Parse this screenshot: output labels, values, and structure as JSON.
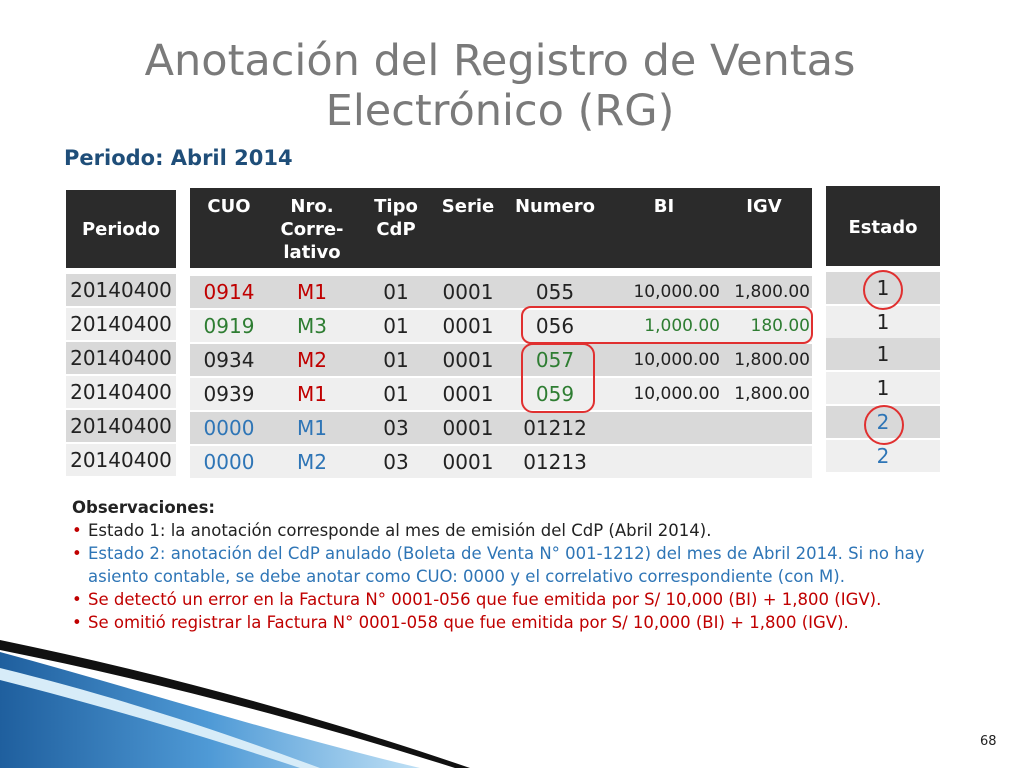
{
  "title_line1": "Anotación del Registro de Ventas",
  "title_line2": "Electrónico (RG)",
  "period_label": "Periodo: Abril 2014",
  "headers": {
    "periodo": "Periodo",
    "cuo": "CUO",
    "nro_1": "Nro.",
    "nro_2": "Corre-",
    "nro_3": "lativo",
    "tipo_1": "Tipo",
    "tipo_2": "CdP",
    "serie": "Serie",
    "numero": "Numero",
    "bi": "BI",
    "igv": "IGV",
    "estado": "Estado"
  },
  "rows": [
    {
      "periodo": "20140400",
      "cuo": "0914",
      "nro": "M1",
      "tipo": "01",
      "serie": "0001",
      "numero": "055",
      "bi": "10,000.00",
      "igv": "1,800.00",
      "estado": "1"
    },
    {
      "periodo": "20140400",
      "cuo": "0919",
      "nro": "M3",
      "tipo": "01",
      "serie": "0001",
      "numero": "056",
      "bi": "1,000.00",
      "igv": "180.00",
      "estado": "1"
    },
    {
      "periodo": "20140400",
      "cuo": "0934",
      "nro": "M2",
      "tipo": "01",
      "serie": "0001",
      "numero": "057",
      "bi": "10,000.00",
      "igv": "1,800.00",
      "estado": "1"
    },
    {
      "periodo": "20140400",
      "cuo": "0939",
      "nro": "M1",
      "tipo": "01",
      "serie": "0001",
      "numero": "059",
      "bi": "10,000.00",
      "igv": "1,800.00",
      "estado": "1"
    },
    {
      "periodo": "20140400",
      "cuo": "0000",
      "nro": "M1",
      "tipo": "03",
      "serie": "0001",
      "numero": "01212",
      "bi": "",
      "igv": "",
      "estado": "2"
    },
    {
      "periodo": "20140400",
      "cuo": "0000",
      "nro": "M2",
      "tipo": "03",
      "serie": "0001",
      "numero": "01213",
      "bi": "",
      "igv": "",
      "estado": "2"
    }
  ],
  "colors": {
    "red": "#c00000",
    "green": "#2e7d32",
    "blue": "#2e75b6",
    "header_bg": "#2b2b2b",
    "row_dark": "#d9d9d9",
    "row_light": "#efefef",
    "circle": "#e03030"
  },
  "observaciones": {
    "heading": "Observaciones:",
    "items": [
      "Estado 1: la anotación corresponde al mes de emisión del CdP (Abril 2014).",
      "Estado 2:  anotación del CdP anulado (Boleta de Venta N° 001-1212) del mes de Abril 2014. Si no hay asiento contable, se debe anotar como CUO: 0000 y el correlativo correspondiente (con M).",
      "Se detectó un error en la Factura N° 0001-056 que fue emitida por S/ 10,000 (BI) + 1,800 (IGV).",
      "Se omitió registrar la Factura N° 0001-058 que fue emitida por  S/ 10,000 (BI) + 1,800 (IGV)."
    ]
  },
  "page_number": "68"
}
